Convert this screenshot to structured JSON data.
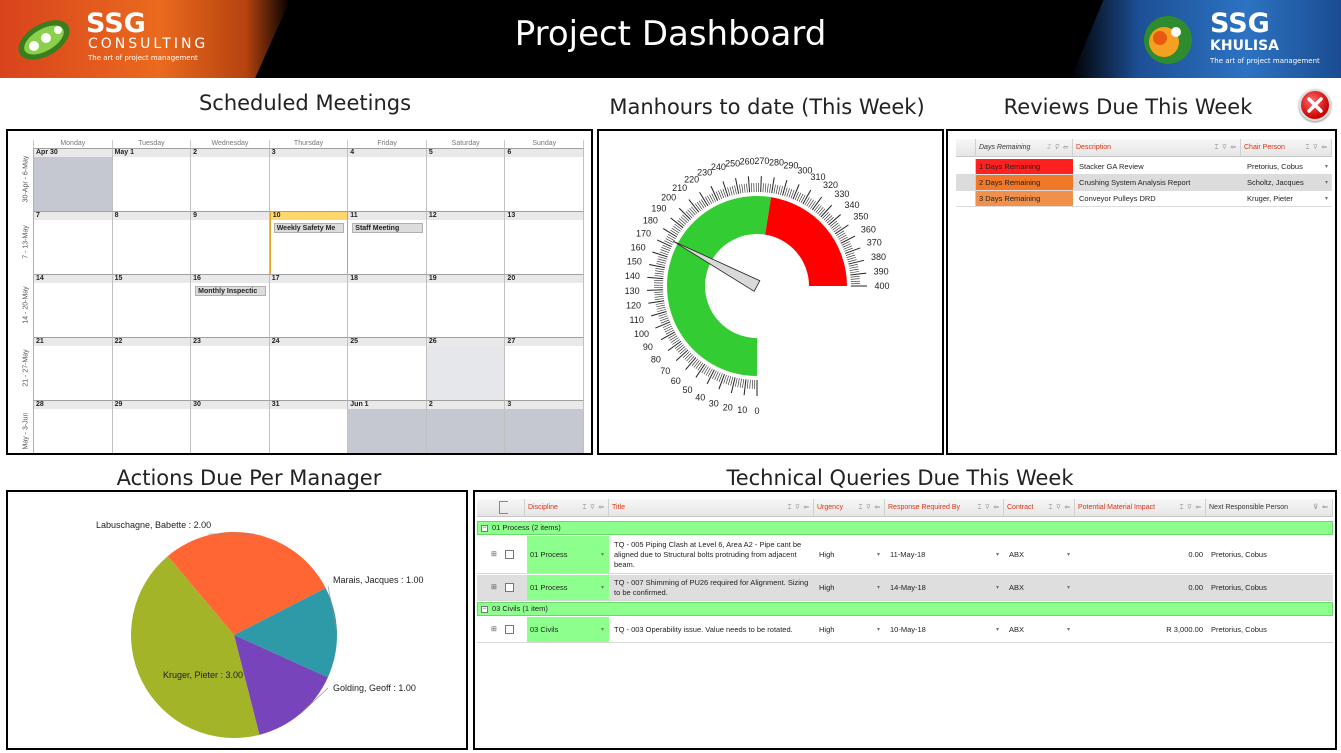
{
  "header": {
    "title": "Project Dashboard",
    "left_logo": {
      "brand": "SSG",
      "sub": "CONSULTING",
      "tagline": "The art of project management"
    },
    "right_logo": {
      "brand": "SSG",
      "sub": "KHULISA",
      "tagline": "The art of project management"
    }
  },
  "sections": {
    "meetings_title": "Scheduled Meetings",
    "manhours_title": "Manhours to date (This Week)",
    "reviews_title": "Reviews Due This Week",
    "actions_title": "Actions Due Per Manager",
    "tq_title": "Technical Queries Due This Week"
  },
  "calendar": {
    "day_headers": [
      "Monday",
      "Tuesday",
      "Wednesday",
      "Thursday",
      "Friday",
      "Saturday",
      "Sunday"
    ],
    "weeks": [
      {
        "label": "30-Apr - 6-May",
        "days": [
          "Apr 30",
          "May 1",
          "2",
          "3",
          "4",
          "5",
          "6"
        ]
      },
      {
        "label": "7 - 13-May",
        "days": [
          "7",
          "8",
          "9",
          "10",
          "11",
          "12",
          "13"
        ]
      },
      {
        "label": "14 - 20-May",
        "days": [
          "14",
          "15",
          "16",
          "17",
          "18",
          "19",
          "20"
        ]
      },
      {
        "label": "21 - 27-May",
        "days": [
          "21",
          "22",
          "23",
          "24",
          "25",
          "26",
          "27"
        ]
      },
      {
        "label": "May - 3-Jun",
        "days": [
          "28",
          "29",
          "30",
          "31",
          "Jun 1",
          "2",
          "3"
        ]
      }
    ],
    "appointments": [
      {
        "week": 1,
        "day": 3,
        "title": "Weekly Safety Me"
      },
      {
        "week": 1,
        "day": 4,
        "title": "Staff Meeting"
      },
      {
        "week": 2,
        "day": 2,
        "title": "Monthly Inspectic"
      }
    ]
  },
  "gauge": {
    "min": 0,
    "max": 400,
    "major_step": 10,
    "value": 175,
    "green_range": [
      0,
      280
    ],
    "red_range": [
      280,
      400
    ],
    "colors": {
      "green": "#33cc33",
      "red": "#ff0000",
      "needle": "#d9d9d9"
    }
  },
  "reviews": {
    "columns": [
      "Days Remaining",
      "Description",
      "Chair Person"
    ],
    "rows": [
      {
        "days": "1 Days Remaining",
        "description": "Stacker GA Review",
        "chair": "Pretorius, Cobus",
        "color": "#ff2020"
      },
      {
        "days": "2 Days Remaining",
        "description": "Crushing System Analysis Report",
        "chair": "Scholtz, Jacques",
        "color": "#f07828"
      },
      {
        "days": "3 Days Remaining",
        "description": "Conveyor Pulleys DRD",
        "chair": "Kruger, Pieter",
        "color": "#f0904a"
      }
    ]
  },
  "chart_data": {
    "type": "pie",
    "title": "Actions Due Per Manager",
    "slices": [
      {
        "label": "Labuschagne, Babette : 2.00",
        "value": 2.0,
        "color": "#ff6633"
      },
      {
        "label": "Marais, Jacques : 1.00",
        "value": 1.0,
        "color": "#2e9aa8"
      },
      {
        "label": "Golding, Geoff : 1.00",
        "value": 1.0,
        "color": "#7744bb"
      },
      {
        "label": "Kruger, Pieter : 3.00",
        "value": 3.0,
        "color": "#a4b428"
      }
    ]
  },
  "tq": {
    "columns": [
      "Discipline",
      "Title",
      "Urgency",
      "Response Required By",
      "Contract",
      "Potential Material Impact",
      "Next Responsible Person"
    ],
    "groups": [
      {
        "label": "01 Process (2 items)",
        "rows": [
          {
            "discipline": "01 Process",
            "title": "TQ - 005 Piping Clash at Level 6, Area A2  - Pipe cant be aligned due to Structural bolts protruding from adjacent beam.",
            "urgency": "High",
            "response": "11-May-18",
            "contract": "ABX",
            "impact": "0.00",
            "person": "Pretorius, Cobus"
          },
          {
            "discipline": "01 Process",
            "title": "TQ - 007 Shimming of PU26 required for Alignment. Sizing to be confirmed.",
            "urgency": "High",
            "response": "14-May-18",
            "contract": "ABX",
            "impact": "0.00",
            "person": "Pretorius, Cobus"
          }
        ]
      },
      {
        "label": "03 Civils (1 item)",
        "rows": [
          {
            "discipline": "03 Civils",
            "title": "TQ - 003 Operability issue. Value needs to be rotated.",
            "urgency": "High",
            "response": "10-May-18",
            "contract": "ABX",
            "impact": "R 3,000.00",
            "person": "Pretorius, Cobus"
          }
        ]
      }
    ]
  }
}
